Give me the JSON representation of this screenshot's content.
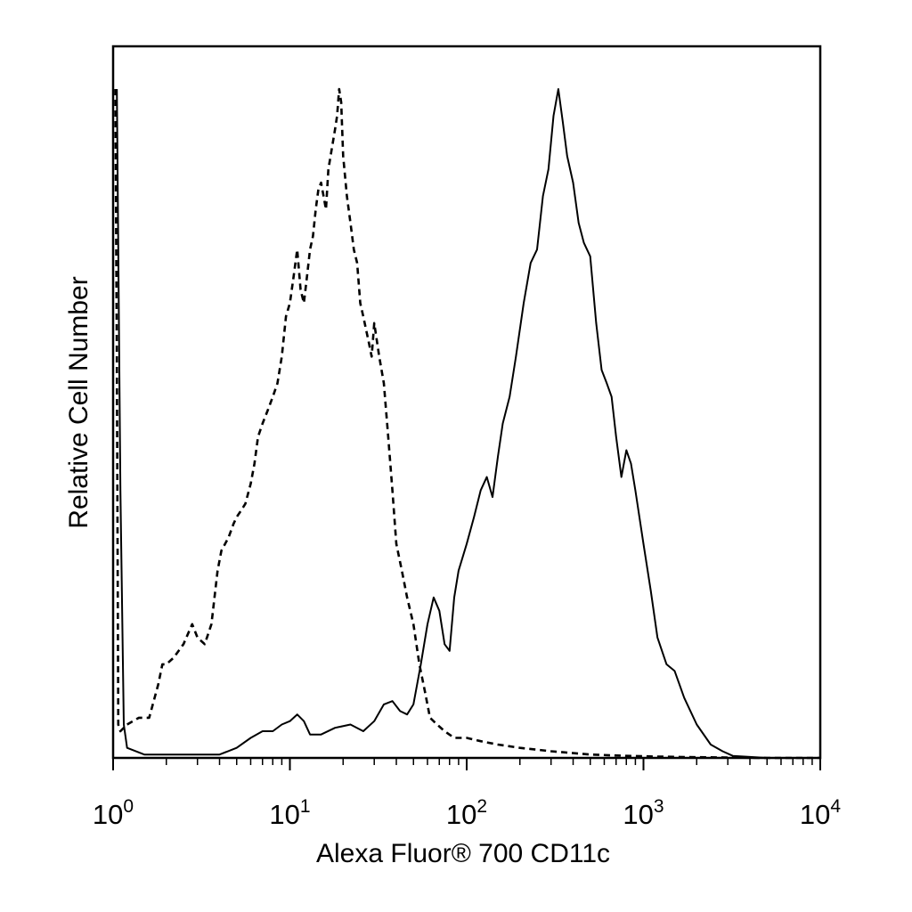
{
  "chart_data": {
    "type": "line",
    "title": "",
    "xlabel": "Alexa Fluor® 700 CD11c",
    "ylabel": "Relative Cell Number",
    "x_scale": "log",
    "xlim": [
      1,
      10000
    ],
    "ylim": [
      0,
      100
    ],
    "grid": false,
    "legend": "none",
    "x_ticks": [
      {
        "value": 1,
        "base": "10",
        "exp": "0"
      },
      {
        "value": 10,
        "base": "10",
        "exp": "1"
      },
      {
        "value": 100,
        "base": "10",
        "exp": "2"
      },
      {
        "value": 1000,
        "base": "10",
        "exp": "3"
      },
      {
        "value": 10000,
        "base": "10",
        "exp": "4"
      }
    ],
    "series": [
      {
        "style": "dashed",
        "color": "#000000",
        "x": [
          1.03,
          1.05,
          1.07,
          1.1,
          1.2,
          1.4,
          1.6,
          1.8,
          1.9,
          2.0,
          2.2,
          2.5,
          2.8,
          3.0,
          3.3,
          3.6,
          3.9,
          4.1,
          4.3,
          4.5,
          4.8,
          5.0,
          5.3,
          5.6,
          6.0,
          6.3,
          6.6,
          7.0,
          7.5,
          8.0,
          8.5,
          9.0,
          9.5,
          10.0,
          10.5,
          11.0,
          11.5,
          12.0,
          12.5,
          13.0,
          13.5,
          14.0,
          14.5,
          15.0,
          15.5,
          16.0,
          16.5,
          17.0,
          17.5,
          18.0,
          18.5,
          19.0,
          19.5,
          20.0,
          21.0,
          22.0,
          23.0,
          24.0,
          25.0,
          26.0,
          27.0,
          28.0,
          29.0,
          30.0,
          32.0,
          34.0,
          36.0,
          38.0,
          40.0,
          43.0,
          46.0,
          50.0,
          54.0,
          58.0,
          62.0,
          68.0,
          75.0,
          85.0,
          100.0,
          120.0,
          150.0,
          200.0,
          300.0,
          500.0,
          800.0,
          1200.0,
          2000.0,
          5000.0,
          10000.0
        ],
        "y": [
          100,
          60,
          5,
          4,
          5,
          6,
          6,
          11,
          14,
          14,
          15,
          17,
          20,
          18,
          17,
          20,
          28,
          31,
          32,
          33,
          35,
          36,
          37,
          38,
          41,
          44,
          48,
          50,
          52,
          54,
          56,
          60,
          66,
          68,
          72,
          76,
          70,
          68,
          72,
          76,
          78,
          82,
          85,
          86,
          84,
          82,
          88,
          90,
          92,
          94,
          96,
          100,
          98,
          90,
          84,
          80,
          76,
          74,
          68,
          66,
          64,
          62,
          60,
          65,
          60,
          56,
          48,
          40,
          32,
          28,
          24,
          20,
          14,
          10,
          6,
          5,
          4,
          3,
          3,
          2.5,
          2,
          1.5,
          1,
          0.5,
          0.3,
          0.2,
          0.1,
          0,
          0
        ]
      },
      {
        "style": "solid",
        "color": "#000000",
        "x": [
          1.05,
          1.1,
          1.15,
          1.2,
          1.5,
          2.0,
          3.0,
          4.0,
          5.0,
          6.0,
          7.0,
          8.0,
          9.0,
          10.0,
          11.0,
          12.0,
          13.0,
          15.0,
          18.0,
          22.0,
          26.0,
          30.0,
          34.0,
          38.0,
          42.0,
          46.0,
          50.0,
          55.0,
          60.0,
          65.0,
          70.0,
          75.0,
          80.0,
          85.0,
          90.0,
          100.0,
          110.0,
          120.0,
          130.0,
          140.0,
          150.0,
          160.0,
          175.0,
          190.0,
          210.0,
          230.0,
          250.0,
          270.0,
          290.0,
          310.0,
          330.0,
          350.0,
          370.0,
          400.0,
          430.0,
          460.0,
          500.0,
          540.0,
          580.0,
          620.0,
          660.0,
          700.0,
          750.0,
          800.0,
          850.0,
          900.0,
          1000.0,
          1100.0,
          1200.0,
          1350.0,
          1500.0,
          1700.0,
          2000.0,
          2400.0,
          2800.0,
          3200.0,
          5000.0,
          10000.0
        ],
        "y": [
          100,
          40,
          5,
          1.5,
          0.5,
          0.5,
          0.5,
          0.5,
          1.5,
          3,
          4,
          4,
          5,
          5.5,
          6.5,
          5.5,
          3.5,
          3.5,
          4.5,
          5,
          4,
          5.5,
          8,
          8.5,
          7,
          6.5,
          8,
          14,
          20,
          24,
          22,
          17,
          16,
          24,
          28,
          32,
          36,
          40,
          42,
          39,
          45,
          50,
          54,
          60,
          68,
          74,
          76,
          84,
          88,
          96,
          100,
          95,
          90,
          86,
          80,
          77,
          75,
          65,
          58,
          56,
          54,
          48,
          42,
          46,
          44,
          40,
          32,
          25,
          18,
          14,
          13,
          9,
          5,
          2,
          1,
          0.3,
          0,
          0
        ]
      }
    ]
  }
}
